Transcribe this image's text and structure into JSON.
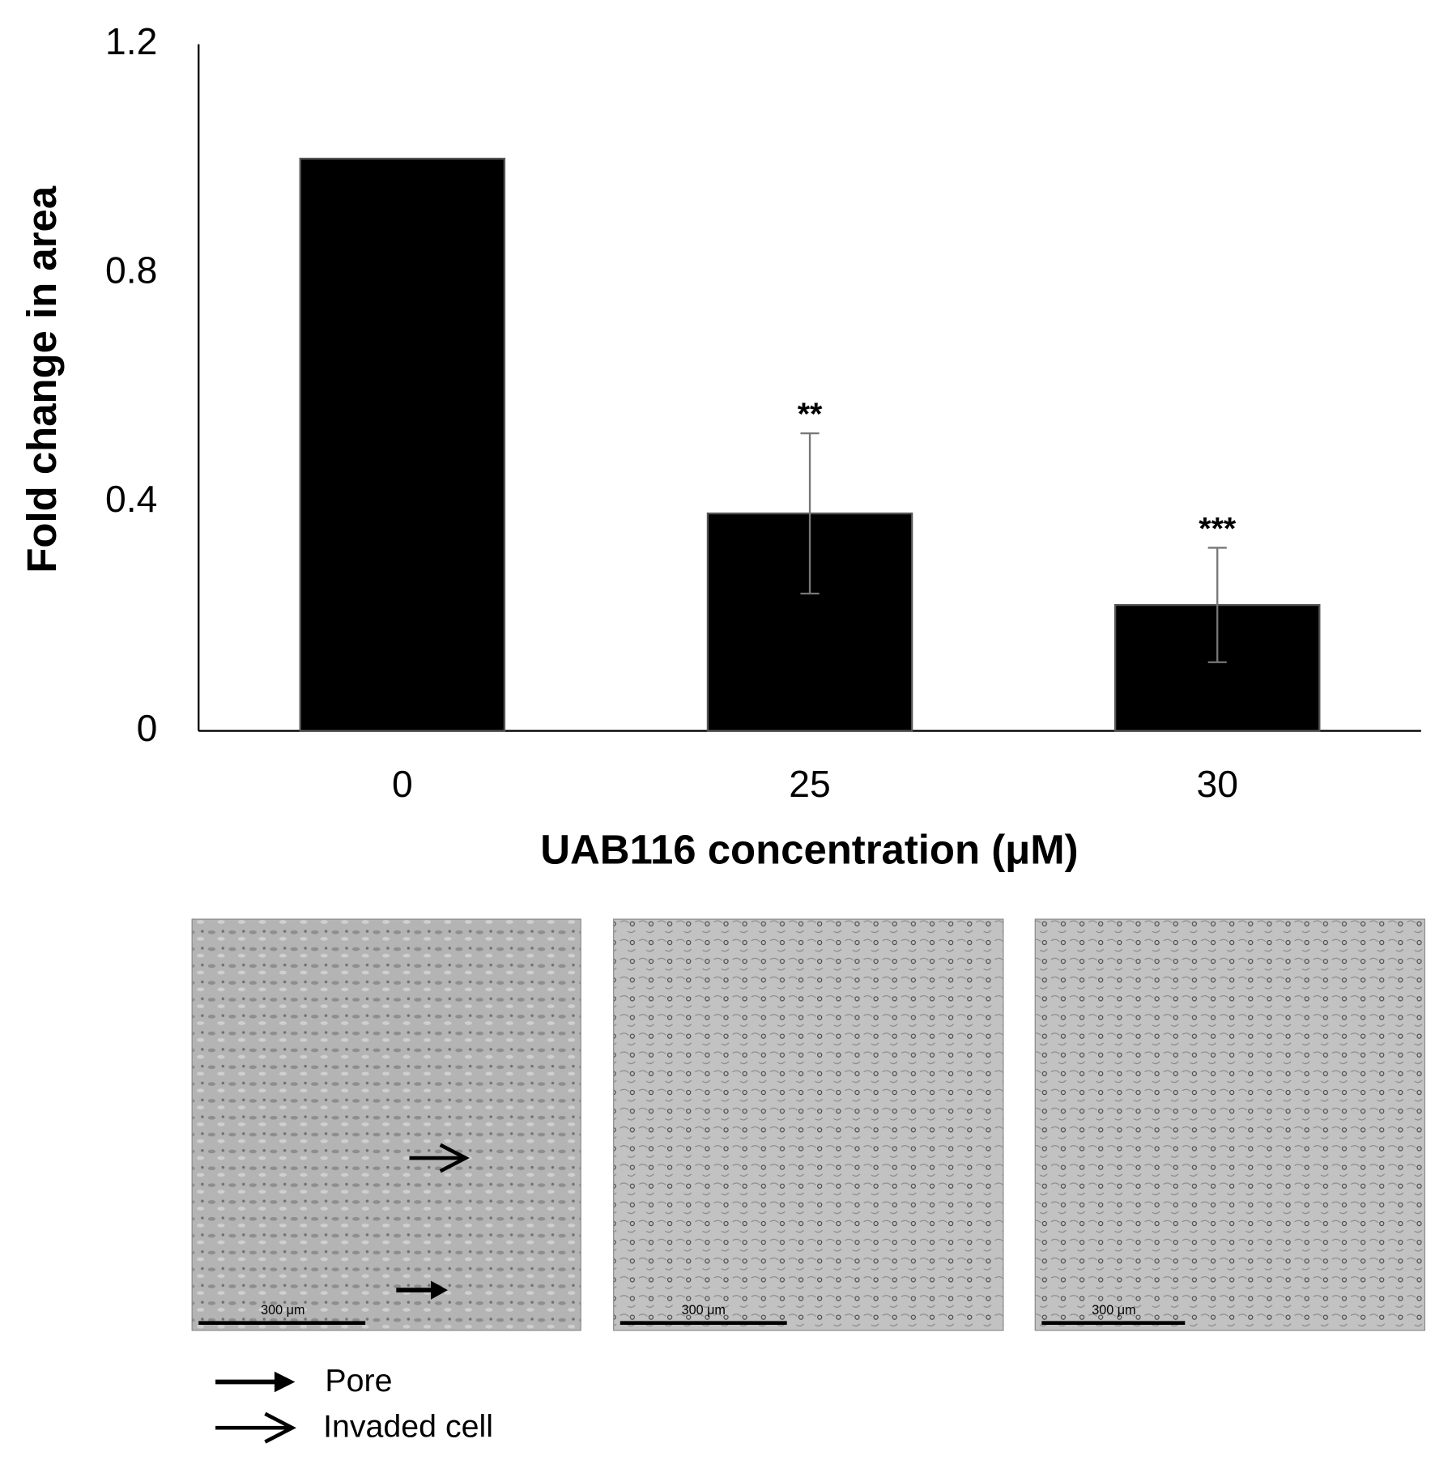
{
  "chart_data": {
    "type": "bar",
    "x_label": "UAB116 concentration (μM)",
    "y_label": "Fold change in area",
    "categories": [
      "0",
      "25",
      "30"
    ],
    "values": [
      1.0,
      0.38,
      0.22
    ],
    "errors": [
      0,
      0.14,
      0.1
    ],
    "annotations": [
      null,
      "**",
      "***"
    ],
    "color": "#000000",
    "ylim": [
      0,
      1.2
    ],
    "yticks": [
      0,
      0.4,
      0.8,
      1.2
    ],
    "grid": false
  },
  "images": {
    "scale_bars": [
      "300 μm",
      "300 μm",
      "300 μm"
    ]
  },
  "legend": {
    "pore": "Pore",
    "invaded_cell": "Invaded cell"
  }
}
